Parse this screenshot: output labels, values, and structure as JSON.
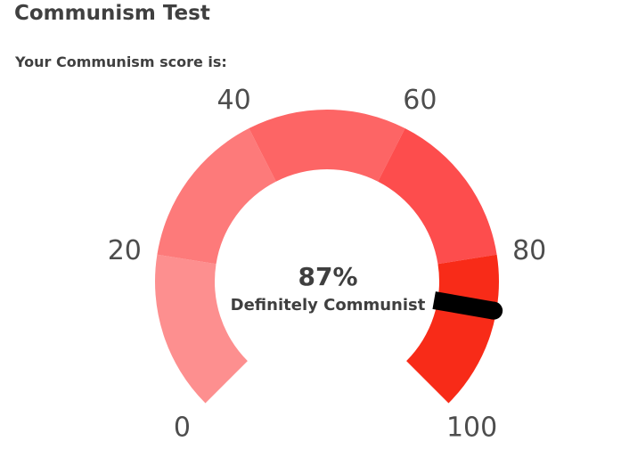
{
  "page": {
    "title": "Communism Test",
    "score_label": "Your Communism score is:"
  },
  "gauge": {
    "value_text": "87%",
    "verdict": "Definitely Communist",
    "min": 0,
    "max": 100,
    "value": 87,
    "ticks": [
      "0",
      "20",
      "40",
      "60",
      "80",
      "100"
    ],
    "segment_colors": [
      "#fd8f8f",
      "#fd7a7a",
      "#fd6565",
      "#fd4d4d",
      "#f82b18"
    ],
    "needle_color": "#000000"
  }
}
